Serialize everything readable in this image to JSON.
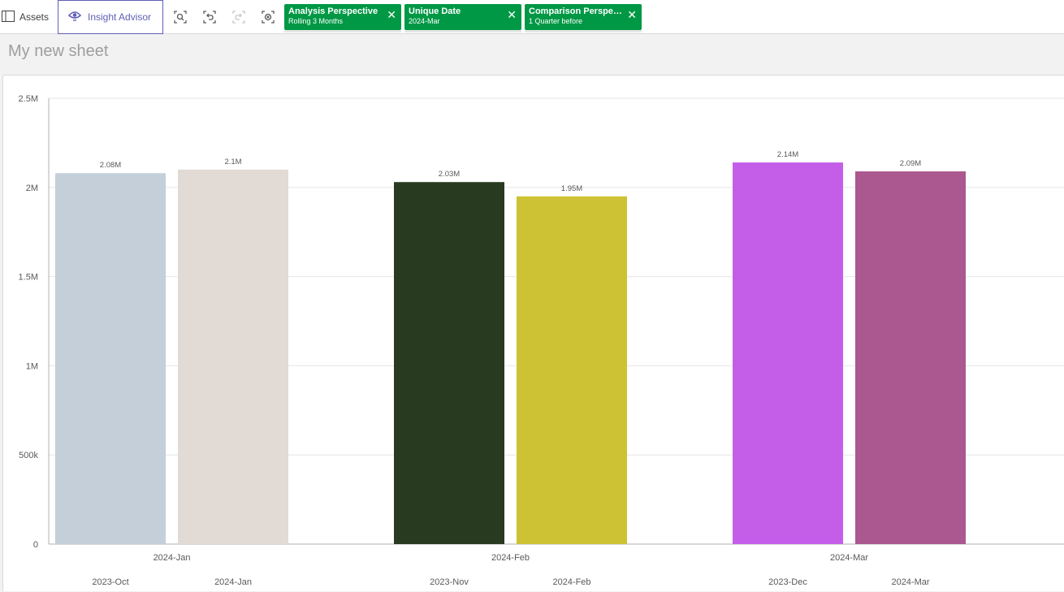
{
  "toolbar": {
    "assets_label": "Assets",
    "insight_label": "Insight Advisor",
    "icons": [
      "smart-search-icon",
      "step-back-icon",
      "step-forward-icon",
      "clear-selections-icon"
    ]
  },
  "selections": [
    {
      "title": "Analysis Perspective",
      "value": "Rolling 3 Months"
    },
    {
      "title": "Unique Date",
      "value": "2024-Mar"
    },
    {
      "title": "Comparison Perspec...",
      "value": "1 Quarter before"
    }
  ],
  "sheet": {
    "title": "My new sheet"
  },
  "colors": {
    "accent": "#5f5fb7",
    "selection": "#009845"
  },
  "chart_data": {
    "type": "bar",
    "y_ticks": [
      "0",
      "500k",
      "1M",
      "1.5M",
      "2M",
      "2.5M"
    ],
    "y_tick_values": [
      0,
      500000,
      1000000,
      1500000,
      2000000,
      2500000
    ],
    "ylim": [
      0,
      2500000
    ],
    "grid": true,
    "groups": [
      {
        "label": "2024-Jan",
        "bars": [
          {
            "label": "2023-Oct",
            "value": 2080000,
            "data_label": "2.08M",
            "color": "#c4cfd9"
          },
          {
            "label": "2024-Jan",
            "value": 2100000,
            "data_label": "2.1M",
            "color": "#e2dad5"
          }
        ]
      },
      {
        "label": "2024-Feb",
        "bars": [
          {
            "label": "2023-Nov",
            "value": 2030000,
            "data_label": "2.03M",
            "color": "#283a1f"
          },
          {
            "label": "2024-Feb",
            "value": 1950000,
            "data_label": "1.95M",
            "color": "#cdc233"
          }
        ]
      },
      {
        "label": "2024-Mar",
        "bars": [
          {
            "label": "2023-Dec",
            "value": 2140000,
            "data_label": "2.14M",
            "color": "#c45ee8"
          },
          {
            "label": "2024-Mar",
            "value": 2090000,
            "data_label": "2.09M",
            "color": "#ab5790"
          }
        ]
      }
    ]
  }
}
